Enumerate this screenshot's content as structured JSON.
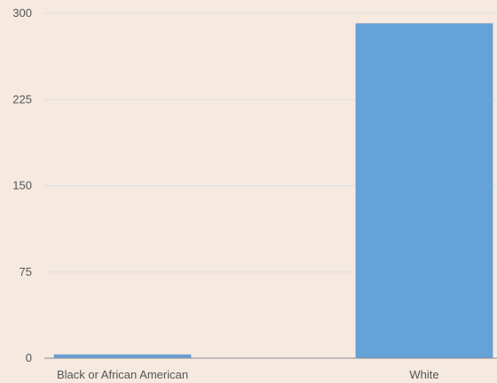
{
  "chart_data": {
    "type": "bar",
    "categories": [
      "Black or African American",
      "White"
    ],
    "values": [
      3,
      291
    ],
    "title": "",
    "xlabel": "",
    "ylabel": "",
    "ylim": [
      0,
      300
    ],
    "y_ticks": [
      "0",
      "75",
      "150",
      "225",
      "300"
    ],
    "grid": true,
    "legend": "none"
  },
  "colors": {
    "background": "#f5e9e0",
    "bar": "#65a2d8",
    "bar_edge": "#4f86b8",
    "grid": "#dde0e3",
    "baseline": "#8c8c8c",
    "text": "#555555"
  }
}
